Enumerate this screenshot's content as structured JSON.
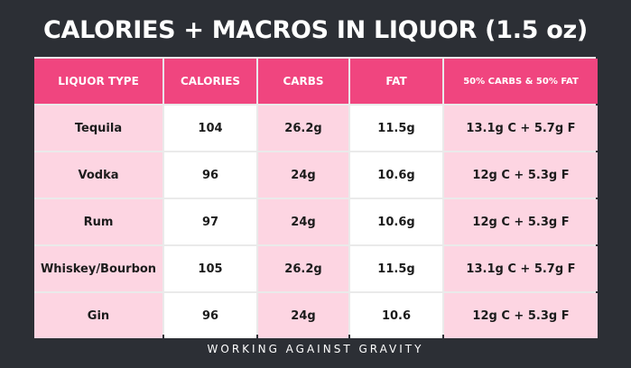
{
  "title": "CALORIES + MACROS IN LIQUOR (1.5 oz)",
  "table": {
    "headers": [
      "LIQUOR TYPE",
      "CALORIES",
      "CARBS",
      "FAT",
      "50% CARBS & 50% FAT"
    ],
    "rows": [
      [
        "Tequila",
        "104",
        "26.2g",
        "11.5g",
        "13.1g C + 5.7g F"
      ],
      [
        "Vodka",
        "96",
        "24g",
        "10.6g",
        "12g C + 5.3g F"
      ],
      [
        "Rum",
        "97",
        "24g",
        "10.6g",
        "12g C + 5.3g F"
      ],
      [
        "Whiskey/Bourbon",
        "105",
        "26.2g",
        "11.5g",
        "13.1g C + 5.7g F"
      ],
      [
        "Gin",
        "96",
        "24g",
        "10.6",
        "12g C + 5.3g F"
      ]
    ]
  },
  "footer": "WORKING AGAINST GRAVITY",
  "colors": {
    "background": "#2c2f35",
    "header": "#f0457f",
    "pink_cell": "#fdd5e2",
    "white_cell": "#ffffff"
  }
}
